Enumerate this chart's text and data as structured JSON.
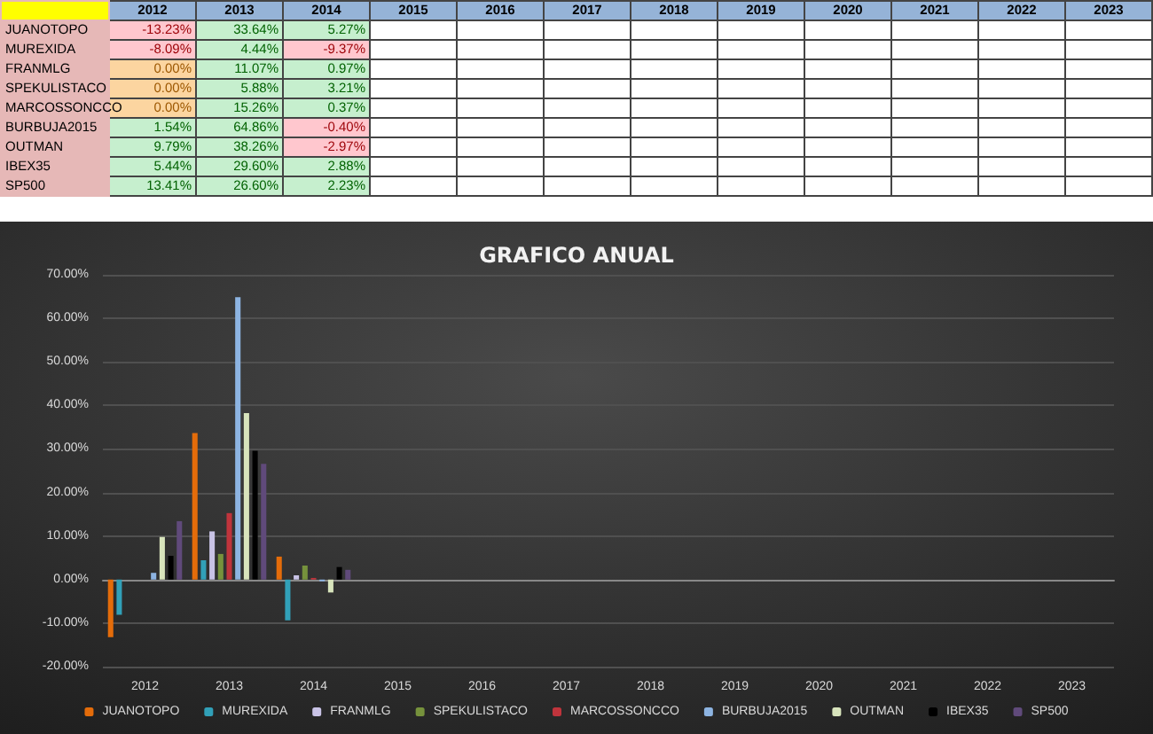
{
  "chart_data": {
    "type": "bar",
    "title": "GRAFICO ANUAL",
    "categories": [
      "2012",
      "2013",
      "2014",
      "2015",
      "2016",
      "2017",
      "2018",
      "2019",
      "2020",
      "2021",
      "2022",
      "2023"
    ],
    "series": [
      {
        "name": "JUANOTOPO",
        "color": "#e46c0a",
        "values": [
          -13.23,
          33.64,
          5.27,
          null,
          null,
          null,
          null,
          null,
          null,
          null,
          null,
          null
        ],
        "value_labels": [
          "-13.23%",
          "33.64%",
          "5.27%",
          null,
          null,
          null,
          null,
          null,
          null,
          null,
          null,
          null
        ]
      },
      {
        "name": "MUREXIDA",
        "color": "#31a0b8",
        "values": [
          -8.09,
          4.44,
          -9.37,
          null,
          null,
          null,
          null,
          null,
          null,
          null,
          null,
          null
        ],
        "value_labels": [
          "-8.09%",
          "4.44%",
          "-9.37%",
          null,
          null,
          null,
          null,
          null,
          null,
          null,
          null,
          null
        ]
      },
      {
        "name": "FRANMLG",
        "color": "#c9c3e6",
        "values": [
          0.0,
          11.07,
          0.97,
          null,
          null,
          null,
          null,
          null,
          null,
          null,
          null,
          null
        ],
        "value_labels": [
          "0.00%",
          "11.07%",
          "0.97%",
          null,
          null,
          null,
          null,
          null,
          null,
          null,
          null,
          null
        ]
      },
      {
        "name": "SPEKULISTACO",
        "color": "#76923c",
        "values": [
          0.0,
          5.88,
          3.21,
          null,
          null,
          null,
          null,
          null,
          null,
          null,
          null,
          null
        ],
        "value_labels": [
          "0.00%",
          "5.88%",
          "3.21%",
          null,
          null,
          null,
          null,
          null,
          null,
          null,
          null,
          null
        ]
      },
      {
        "name": "MARCOSSONCCO",
        "color": "#c0343c",
        "values": [
          0.0,
          15.26,
          0.37,
          null,
          null,
          null,
          null,
          null,
          null,
          null,
          null,
          null
        ],
        "value_labels": [
          "0.00%",
          "15.26%",
          "0.37%",
          null,
          null,
          null,
          null,
          null,
          null,
          null,
          null,
          null
        ]
      },
      {
        "name": "BURBUJA2015",
        "color": "#8db4e2",
        "values": [
          1.54,
          64.86,
          -0.4,
          null,
          null,
          null,
          null,
          null,
          null,
          null,
          null,
          null
        ],
        "value_labels": [
          "1.54%",
          "64.86%",
          "-0.40%",
          null,
          null,
          null,
          null,
          null,
          null,
          null,
          null,
          null
        ]
      },
      {
        "name": "OUTMAN",
        "color": "#d8e4bc",
        "values": [
          9.79,
          38.26,
          -2.97,
          null,
          null,
          null,
          null,
          null,
          null,
          null,
          null,
          null
        ],
        "value_labels": [
          "9.79%",
          "38.26%",
          "-2.97%",
          null,
          null,
          null,
          null,
          null,
          null,
          null,
          null,
          null
        ]
      },
      {
        "name": "IBEX35",
        "color": "#000000",
        "values": [
          5.44,
          29.6,
          2.88,
          null,
          null,
          null,
          null,
          null,
          null,
          null,
          null,
          null
        ],
        "value_labels": [
          "5.44%",
          "29.60%",
          "2.88%",
          null,
          null,
          null,
          null,
          null,
          null,
          null,
          null,
          null
        ]
      },
      {
        "name": "SP500",
        "color": "#604a7b",
        "values": [
          13.41,
          26.6,
          2.23,
          null,
          null,
          null,
          null,
          null,
          null,
          null,
          null,
          null
        ],
        "value_labels": [
          "13.41%",
          "26.60%",
          "2.23%",
          null,
          null,
          null,
          null,
          null,
          null,
          null,
          null,
          null
        ]
      }
    ],
    "ylim": [
      -20,
      70
    ],
    "yticks": [
      {
        "value": -20,
        "label": "-20.00%"
      },
      {
        "value": -10,
        "label": "-10.00%"
      },
      {
        "value": 0,
        "label": "0.00%"
      },
      {
        "value": 10,
        "label": "10.00%"
      },
      {
        "value": 20,
        "label": "20.00%"
      },
      {
        "value": 30,
        "label": "30.00%"
      },
      {
        "value": 40,
        "label": "40.00%"
      },
      {
        "value": 50,
        "label": "50.00%"
      },
      {
        "value": 60,
        "label": "60.00%"
      },
      {
        "value": 70,
        "label": "70.00%"
      }
    ],
    "grid": "y",
    "legend": "bottom"
  }
}
